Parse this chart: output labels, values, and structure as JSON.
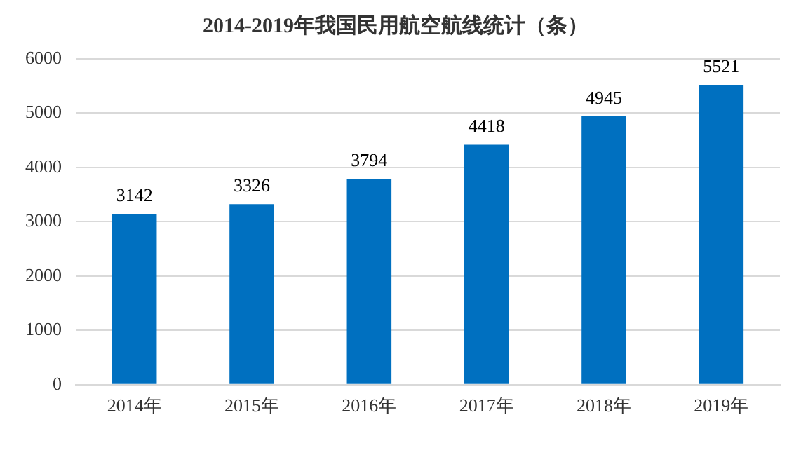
{
  "chart_data": {
    "type": "bar",
    "title": "2014-2019年我国民用航空航线统计（条）",
    "categories": [
      "2014年",
      "2015年",
      "2016年",
      "2017年",
      "2018年",
      "2019年"
    ],
    "values": [
      3142,
      3326,
      3794,
      4418,
      4945,
      5521
    ],
    "color": "#0070c0",
    "ylim": [
      0,
      6000
    ],
    "yticks": [
      0,
      1000,
      2000,
      3000,
      4000,
      5000,
      6000
    ],
    "grid": "y",
    "data_labels": true
  }
}
